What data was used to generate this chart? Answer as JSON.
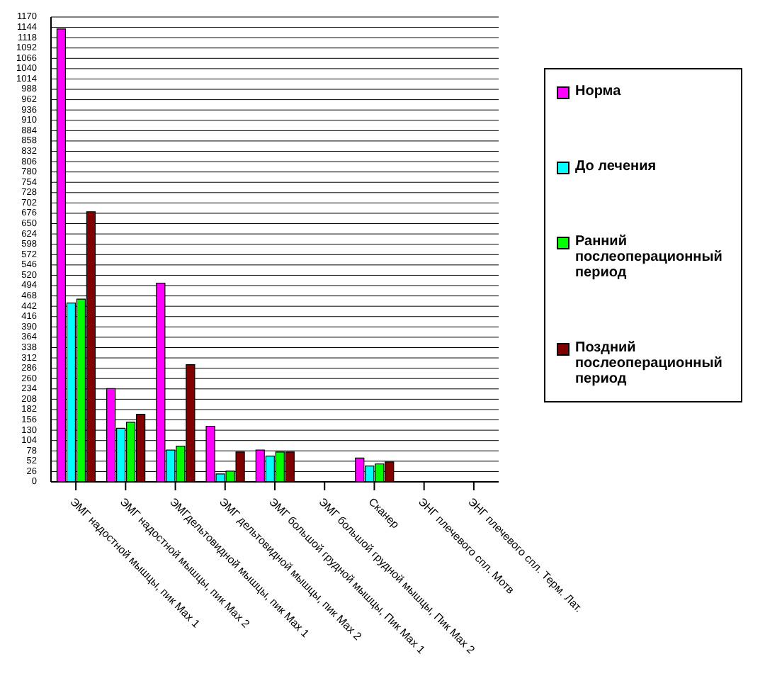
{
  "chart_data": {
    "type": "bar",
    "categories": [
      "ЭМГ надостной мышцы, пик Max 1",
      "ЭМГ надостной мышцы, пик Max 2",
      "ЭМГдельтовидной мышцы, пик Max 1",
      "ЭМГ дельтовидной мышцы, пик Max 2",
      "ЭМГ большой грудной мышцы, Пик Max 1",
      "ЭМГ большой грудной мышцы, Пик Max 2",
      "Сканер",
      "ЭНГ плечевого спл. Мотв",
      "ЭНГ плечевого спл. Терм. Лат."
    ],
    "series": [
      {
        "name": "Норма",
        "color": "#ff00ff",
        "values": [
          1140,
          235,
          500,
          140,
          80,
          0,
          60,
          0,
          0
        ]
      },
      {
        "name": "До лечения",
        "color": "#00ffff",
        "values": [
          450,
          135,
          80,
          20,
          65,
          0,
          40,
          0,
          0
        ]
      },
      {
        "name": "Ранний послеоперационный период",
        "color": "#00ff00",
        "values": [
          460,
          150,
          90,
          27,
          75,
          0,
          45,
          0,
          0
        ]
      },
      {
        "name": "Поздний послеоперационный период",
        "color": "#800000",
        "values": [
          680,
          170,
          295,
          75,
          75,
          0,
          50,
          0,
          0
        ]
      }
    ],
    "ylim": [
      0,
      1170
    ],
    "yticks": [
      0,
      26,
      52,
      78,
      104,
      130,
      156,
      182,
      208,
      234,
      260,
      286,
      312,
      338,
      364,
      390,
      416,
      442,
      468,
      494,
      520,
      546,
      572,
      598,
      624,
      650,
      676,
      702,
      728,
      754,
      780,
      806,
      832,
      858,
      884,
      910,
      936,
      962,
      988,
      1014,
      1040,
      1066,
      1092,
      1118,
      1144,
      1170
    ],
    "grid": "y",
    "legend": "right"
  }
}
